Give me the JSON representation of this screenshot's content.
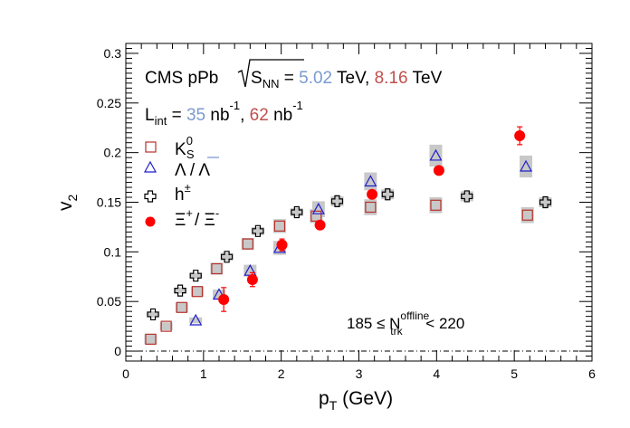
{
  "chart_data": {
    "type": "scatter",
    "title": "",
    "xlabel": {
      "main": "p",
      "sub": "T",
      "unit": " (GeV)"
    },
    "ylabel": {
      "main": "v",
      "sub": "2"
    },
    "xlim": [
      0,
      6
    ],
    "ylim": [
      -0.01,
      0.31
    ],
    "xticks": [
      "0",
      "1",
      "2",
      "3",
      "4",
      "5",
      "6"
    ],
    "yticks": [
      "0",
      "0.05",
      "0.1",
      "0.15",
      "0.2",
      "0.25",
      "0.3"
    ],
    "grid": false,
    "legend_position": "top-left",
    "annotations": {
      "line1": {
        "prefix": "CMS pPb ",
        "sqrt_base": "S",
        "sqrt_sub": "NN",
        "eq": " = ",
        "energy1": "5.02",
        "tev1": " TeV, ",
        "energy2": "8.16",
        "tev2": " TeV"
      },
      "line2": {
        "l": "L",
        "l_sub": "int",
        "eq": " = ",
        "lumi1": "35",
        "unit1": " nb",
        "unit1_sup": "-1",
        "comma": ", ",
        "lumi2": "62",
        "unit2": " nb",
        "unit2_sup": "-1"
      },
      "multiplicity": {
        "lower": "185 ≤ N",
        "sup": "offline",
        "sub": "trk",
        "upper": " < 220"
      }
    },
    "colors": {
      "blue": "#7b9ad0",
      "red": "#c0504d",
      "k0s": "#b8312b",
      "lambda": "#1f1fcc",
      "xi": "#ff0000",
      "syst": "#c8c8c8"
    },
    "series": [
      {
        "name": "K0S",
        "legend": {
          "base": "K",
          "sup": "0",
          "sub": "S"
        },
        "marker": "open-square",
        "x": [
          0.32,
          0.52,
          0.72,
          0.92,
          1.17,
          1.57,
          1.98,
          2.45,
          3.15,
          3.99,
          5.17
        ],
        "y": [
          0.012,
          0.025,
          0.044,
          0.06,
          0.083,
          0.108,
          0.126,
          0.136,
          0.145,
          0.147,
          0.137
        ],
        "syst": [
          0.005,
          0.004,
          0.005,
          0.005,
          0.006,
          0.006,
          0.007,
          0.007,
          0.008,
          0.008,
          0.008
        ]
      },
      {
        "name": "Lambda",
        "legend": {
          "text": "Λ / Λ"
        },
        "marker": "open-triangle",
        "x": [
          0.9,
          1.2,
          1.6,
          1.98,
          2.48,
          3.15,
          3.99,
          5.15
        ],
        "y": [
          0.031,
          0.057,
          0.081,
          0.104,
          0.143,
          0.171,
          0.197,
          0.186
        ],
        "syst": [
          0.003,
          0.005,
          0.006,
          0.007,
          0.008,
          0.009,
          0.011,
          0.011
        ]
      },
      {
        "name": "h±",
        "legend": {
          "base": "h",
          "sup": "±"
        },
        "marker": "open-cross",
        "x": [
          0.35,
          0.7,
          0.9,
          1.3,
          1.7,
          2.2,
          2.72,
          3.37,
          4.39,
          5.4
        ],
        "y": [
          0.037,
          0.061,
          0.076,
          0.095,
          0.121,
          0.14,
          0.151,
          0.158,
          0.156,
          0.15
        ],
        "syst": [
          0.003,
          0.003,
          0.003,
          0.004,
          0.004,
          0.004,
          0.005,
          0.005,
          0.005,
          0.005
        ]
      },
      {
        "name": "Xi",
        "legend": {
          "t1": "Ξ",
          "s1": "+",
          "t2": "/ Ξ",
          "s2": "-"
        },
        "marker": "filled-circle",
        "x": [
          1.26,
          1.63,
          2.01,
          2.5,
          3.17,
          4.03,
          5.07
        ],
        "y": [
          0.052,
          0.072,
          0.107,
          0.127,
          0.158,
          0.182,
          0.217
        ],
        "err": [
          0.012,
          0.007,
          0.006,
          0.004,
          0.004,
          0.004,
          0.009
        ]
      }
    ]
  }
}
